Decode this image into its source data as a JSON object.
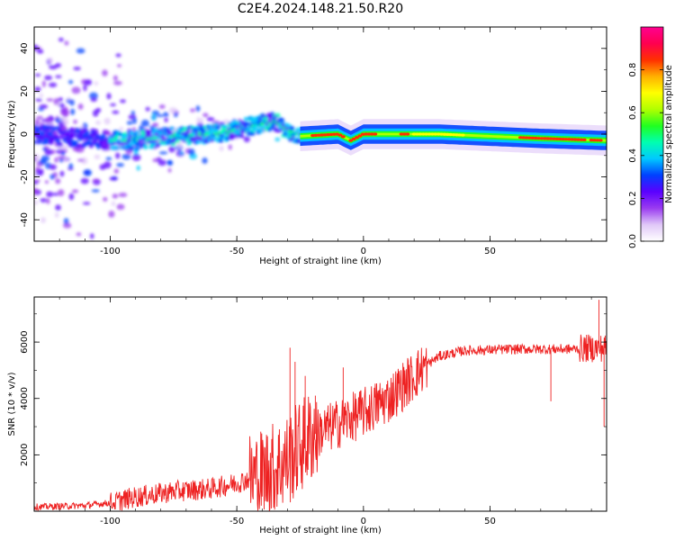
{
  "title": "C2E4.2024.148.21.50.R20",
  "chart_data": [
    {
      "type": "heatmap",
      "name": "spectrogram",
      "xlabel": "Height of straight line (km)",
      "ylabel": "Frequency (Hz)",
      "xlim": [
        -130,
        96
      ],
      "ylim": [
        -50,
        50
      ],
      "xticks": [
        -100,
        -50,
        0,
        50
      ],
      "yticks": [
        -40,
        -20,
        0,
        20,
        40
      ],
      "colorbar": {
        "label": "Normalized spectral amplitude",
        "range": [
          0,
          1
        ],
        "ticks": [
          0.0,
          0.2,
          0.4,
          0.6,
          0.8
        ],
        "tick_labels": [
          "0.0",
          "0.2",
          "0.4",
          "0.6",
          "0.8"
        ],
        "colors": [
          "#ffffff",
          "#e0c8f8",
          "#9a3cf0",
          "#5a00ff",
          "#0040ff",
          "#00c8ff",
          "#00ffb0",
          "#20ff20",
          "#b0ff00",
          "#ffff00",
          "#ffb000",
          "#ff3000",
          "#ff0050",
          "#ff0090"
        ]
      },
      "ridge": [
        {
          "x": -130,
          "y": 0
        },
        {
          "x": -100,
          "y": -3
        },
        {
          "x": -90,
          "y": -3
        },
        {
          "x": -75,
          "y": -1
        },
        {
          "x": -60,
          "y": 0
        },
        {
          "x": -50,
          "y": 2
        },
        {
          "x": -40,
          "y": 5
        },
        {
          "x": -35,
          "y": 6
        },
        {
          "x": -30,
          "y": 2
        },
        {
          "x": -25,
          "y": -1
        },
        {
          "x": -10,
          "y": 0
        },
        {
          "x": -5,
          "y": -3
        },
        {
          "x": 0,
          "y": 0
        },
        {
          "x": 30,
          "y": 0
        },
        {
          "x": 50,
          "y": -1
        },
        {
          "x": 70,
          "y": -2
        },
        {
          "x": 96,
          "y": -3
        }
      ]
    },
    {
      "type": "line",
      "name": "snr",
      "xlabel": "Height of straight line (km)",
      "ylabel": "SNR (10 * v/v)",
      "xlim": [
        -130,
        96
      ],
      "ylim": [
        0,
        7600
      ],
      "xticks": [
        -100,
        -50,
        0,
        50
      ],
      "yticks": [
        2000,
        4000,
        6000
      ],
      "series": [
        {
          "name": "SNR",
          "color": "#ee2222",
          "trend": [
            {
              "x": -130,
              "y": 150
            },
            {
              "x": -110,
              "y": 200
            },
            {
              "x": -100,
              "y": 300
            },
            {
              "x": -90,
              "y": 500
            },
            {
              "x": -75,
              "y": 700
            },
            {
              "x": -60,
              "y": 800
            },
            {
              "x": -50,
              "y": 1000
            },
            {
              "x": -40,
              "y": 1300
            },
            {
              "x": -30,
              "y": 1800
            },
            {
              "x": -25,
              "y": 2300
            },
            {
              "x": -20,
              "y": 2700
            },
            {
              "x": -10,
              "y": 3100
            },
            {
              "x": 0,
              "y": 3500
            },
            {
              "x": 10,
              "y": 4000
            },
            {
              "x": 20,
              "y": 4800
            },
            {
              "x": 25,
              "y": 5200
            },
            {
              "x": 30,
              "y": 5500
            },
            {
              "x": 40,
              "y": 5700
            },
            {
              "x": 60,
              "y": 5750
            },
            {
              "x": 80,
              "y": 5750
            },
            {
              "x": 96,
              "y": 5800
            }
          ],
          "spikes": [
            {
              "x": -29,
              "y": 5800
            },
            {
              "x": -27,
              "y": 5300
            },
            {
              "x": -23,
              "y": 4800
            },
            {
              "x": -19,
              "y": 4100
            },
            {
              "x": -8,
              "y": 5100
            },
            {
              "x": 74,
              "y": 3900
            },
            {
              "x": 93,
              "y": 7500
            },
            {
              "x": 95,
              "y": 3000
            }
          ]
        }
      ]
    }
  ]
}
